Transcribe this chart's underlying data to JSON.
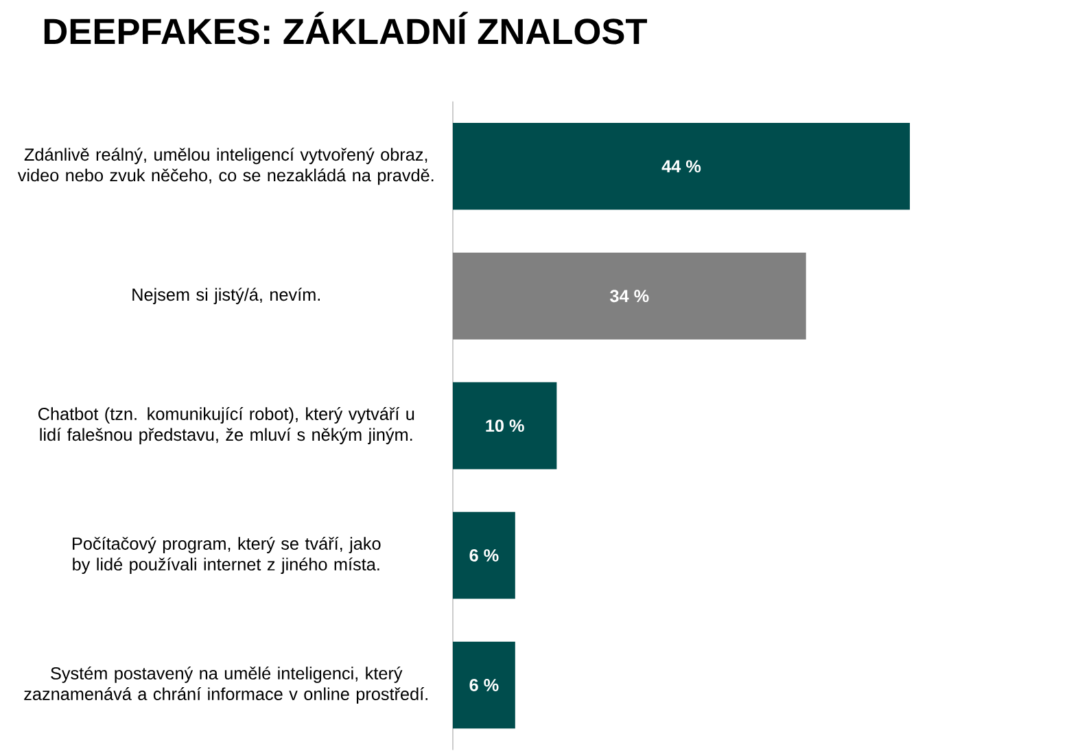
{
  "chart_data": {
    "type": "bar",
    "orientation": "horizontal",
    "title": "DEEPFAKES: ZÁKLADNÍ ZNALOST",
    "categories": [
      "Zdánlivě reálný, umělou inteligencí vytvořený obraz, video nebo zvuk něčeho, co se nezakládá na pravdě.",
      "Nejsem si jistý/á, nevím.",
      "Chatbot (tzn. komunikující robot), který vytváří u lidí falešnou představu, že mluví s někým jiným.",
      "Počítačový program, který se tváří, jako by lidé používali internet z jiného místa.",
      "Systém postavený na umělé inteligenci, který zaznamenává a chrání informace v online prostředí."
    ],
    "values": [
      44,
      34,
      10,
      6,
      6
    ],
    "colors": [
      "#004d4d",
      "#808080",
      "#004d4d",
      "#004d4d",
      "#004d4d"
    ],
    "value_labels": [
      "44 %",
      "34 %",
      "10 %",
      "6 %",
      "6 %"
    ]
  }
}
